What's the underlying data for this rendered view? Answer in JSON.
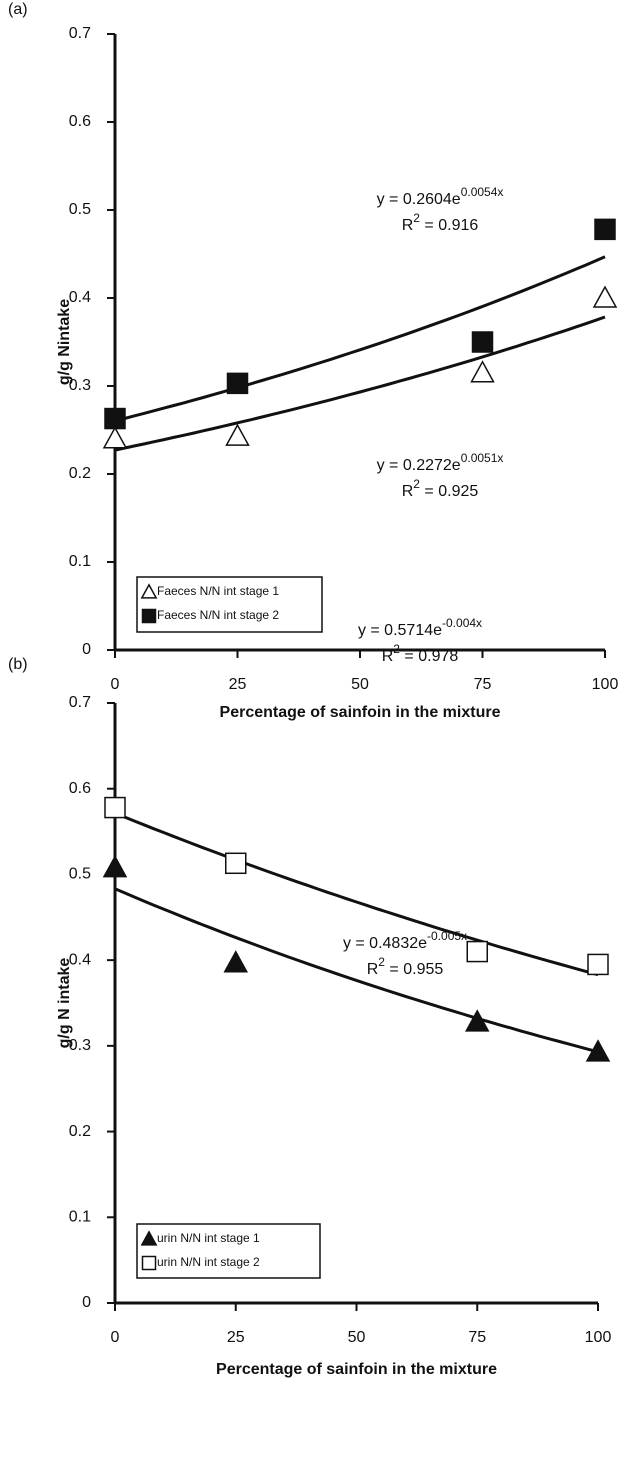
{
  "chart_data": [
    {
      "type": "scatter",
      "panel_label": "(a)",
      "ylabel": "g/g Nintake",
      "xlabel": "Percentage of sainfoin in the mixture",
      "x": [
        0,
        25,
        75,
        100
      ],
      "xlim": [
        0,
        100
      ],
      "xticks": [
        0,
        25,
        50,
        75,
        100
      ],
      "ylim": [
        0,
        0.7
      ],
      "yticks": [
        0,
        0.1,
        0.2,
        0.3,
        0.4,
        0.5,
        0.6,
        0.7
      ],
      "equation_parts": {
        "y": "y = ",
        "e": "e",
        "x": "x",
        "r": "R",
        "sup": "2",
        "eq": " = "
      },
      "series": [
        {
          "name": "Faeces N/N int stage 1",
          "marker": "triangle-open",
          "color": "#111111",
          "values": [
            0.24,
            0.243,
            0.315,
            0.4
          ],
          "trendline": {
            "a": 0.2272,
            "b": 0.0051,
            "r2": 0.925
          }
        },
        {
          "name": "Faeces N/N int stage 2",
          "marker": "square-filled",
          "color": "#111111",
          "values": [
            0.263,
            0.303,
            0.35,
            0.478
          ],
          "trendline": {
            "a": 0.2604,
            "b": 0.0054,
            "r2": 0.916
          }
        }
      ]
    },
    {
      "type": "scatter",
      "panel_label": "(b)",
      "ylabel": "g/g N intake",
      "xlabel": "Percentage of sainfoin in the mixture",
      "x": [
        0,
        25,
        75,
        100
      ],
      "xlim": [
        0,
        100
      ],
      "xticks": [
        0,
        25,
        50,
        75,
        100
      ],
      "ylim": [
        0,
        0.7
      ],
      "yticks": [
        0,
        0.1,
        0.2,
        0.3,
        0.4,
        0.5,
        0.6,
        0.7
      ],
      "equation_parts": {
        "y": "y = ",
        "e": "e",
        "x": "x",
        "r": "R",
        "sup": "2",
        "eq": " = "
      },
      "series": [
        {
          "name": "urin N/N int stage 1",
          "marker": "triangle-filled",
          "color": "#111111",
          "values": [
            0.508,
            0.397,
            0.328,
            0.293
          ],
          "trendline": {
            "a": 0.4832,
            "b": -0.005,
            "r2": 0.955
          }
        },
        {
          "name": "urin N/N int stage 2",
          "marker": "square-open",
          "color": "#111111",
          "values": [
            0.578,
            0.513,
            0.41,
            0.395
          ],
          "trendline": {
            "a": 0.5714,
            "b": -0.004,
            "r2": 0.978
          }
        }
      ]
    }
  ]
}
